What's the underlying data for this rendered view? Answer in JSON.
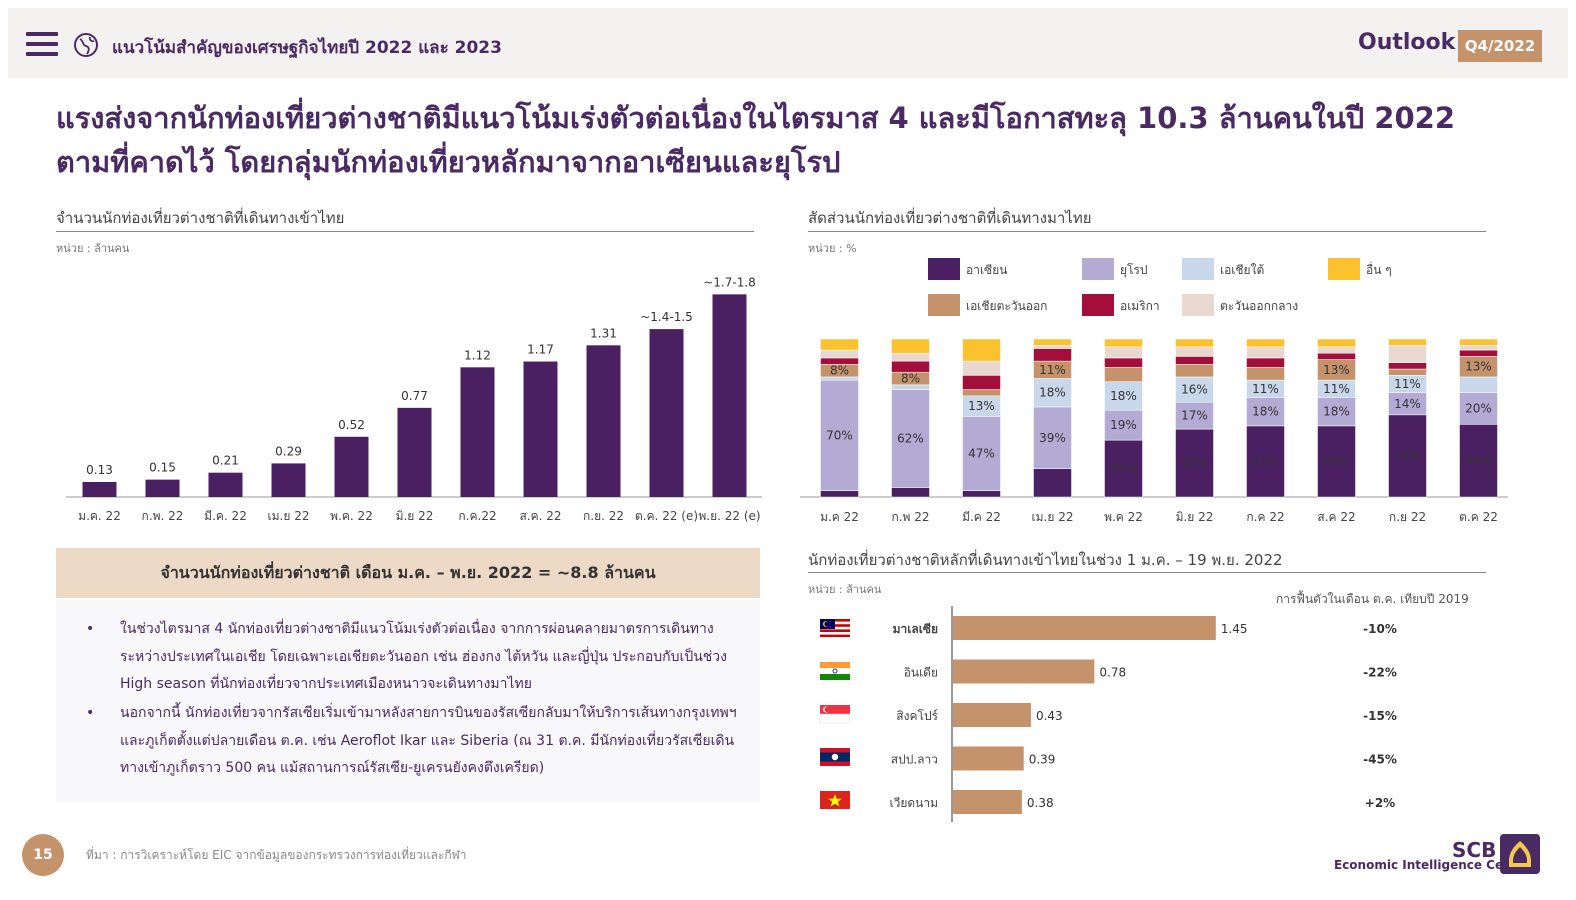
{
  "header": {
    "title": "แนวโน้มสำคัญของเศรษฐกิจไทยปี 2022 และ 2023",
    "outlook": "Outlook",
    "quarter": "Q4/2022"
  },
  "main_title": "แรงส่งจากนักท่องเที่ยวต่างชาติมีแนวโน้มเร่งตัวต่อเนื่องในไตรมาส 4 และมีโอกาสทะลุ 10.3 ล้านคนในปี 2022 ตามที่คาดไว้ โดยกลุ่มนักท่องเที่ยวหลักมาจากอาเซียนและยุโรป",
  "left_chart_section": {
    "title": "จำนวนนักท่องเที่ยวต่างชาติที่เดินทางเข้าไทย",
    "unit": "หน่วย : ล้านคน"
  },
  "right_chart_section": {
    "title": "สัดส่วนนักท่องเที่ยวต่างชาติที่เดินทางมาไทย",
    "unit": "หน่วย : %"
  },
  "bottom_chart_section": {
    "title": "นักท่องเที่ยวต่างชาติหลักที่เดินทางเข้าไทยในช่วง 1 ม.ค. – 19 พ.ย. 2022",
    "unit": "หน่วย : ล้านคน",
    "recovery_header": "การฟื้นตัวในเดือน ต.ค. เทียบปี 2019"
  },
  "summary": "จำนวนนักท่องเที่ยวต่างชาติ เดือน ม.ค. – พ.ย. 2022   = ~8.8 ล้านคน",
  "bullets": [
    "ในช่วงไตรมาส 4 นักท่องเที่ยวต่างชาติมีแนวโน้มเร่งตัวต่อเนื่อง จากการผ่อนคลายมาตรการเดินทางระหว่างประเทศในเอเชีย โดยเฉพาะเอเชียตะวันออก เช่น ฮ่องกง ไต้หวัน และญี่ปุ่น ประกอบกับเป็นช่วง High season ที่นักท่องเที่ยวจากประเทศเมืองหนาวจะเดินทางมาไทย",
    "นอกจากนี้ นักท่องเที่ยวจากรัสเซียเริ่มเข้ามาหลังสายการบินของรัสเซียกลับมาให้บริการเส้นทางกรุงเทพฯ และภูเก็ตตั้งแต่ปลายเดือน ต.ค. เช่น Aeroflot Ikar และ Siberia (ณ 31 ต.ค. มีนักท่องเที่ยวรัสเซียเดินทางเข้าภูเก็ตราว 500 คน แม้สถานการณ์รัสเซีย-ยูเครนยังคงตึงเครียด)"
  ],
  "footer": {
    "page": "15",
    "source": "ที่มา : การวิเคราะห์โดย EIC จากข้อมูลของกระทรวงการท่องเที่ยวและกีฬา",
    "logo": "SCB",
    "logo_sub": "Economic Intelligence Center"
  },
  "colors": {
    "accent": "#4a2a63",
    "tan": "#c4926b",
    "asean": "#4b2063",
    "europe": "#b3abd3",
    "south_asia": "#c9d7ea",
    "other": "#fcc22e",
    "east_asia": "#c4926b",
    "america": "#a30f3a",
    "middle_east": "#e8d8cf"
  },
  "chart_data": [
    {
      "type": "bar",
      "categories": [
        "ม.ค. 22",
        "ก.พ. 22",
        "มี.ค. 22",
        "เม.ย 22",
        "พ.ค. 22",
        "มิ.ย 22",
        "ก.ค.22",
        "ส.ค. 22",
        "ก.ย. 22",
        "ต.ค. 22 (e)",
        "พ.ย. 22 (e)"
      ],
      "values": [
        0.13,
        0.15,
        0.21,
        0.29,
        0.52,
        0.77,
        1.12,
        1.17,
        1.31,
        1.45,
        1.75
      ],
      "labels": [
        "0.13",
        "0.15",
        "0.21",
        "0.29",
        "0.52",
        "0.77",
        "1.12",
        "1.17",
        "1.31",
        "~1.4-1.5",
        "~1.7-1.8"
      ],
      "ylim": [
        0,
        1.9
      ],
      "color": "#4b2063"
    },
    {
      "type": "bar",
      "stacked": true,
      "categories": [
        "ม.ค 22",
        "ก.พ 22",
        "มี.ค 22",
        "เม.ย 22",
        "พ.ค 22",
        "มิ.ย 22",
        "ก.ค 22",
        "ส.ค 22",
        "ก.ย 22",
        "ต.ค 22"
      ],
      "ylim": [
        0,
        100
      ],
      "legend": [
        "อาเซียน",
        "ยุโรป",
        "เอเชียใต้",
        "อื่น ๆ",
        "เอเชียตะวันออก",
        "อเมริกา",
        "ตะวันออกกลาง"
      ],
      "series": [
        {
          "name": "อาเซียน",
          "color": "#4b2063",
          "values": [
            4,
            6,
            4,
            18,
            36,
            43,
            45,
            45,
            52,
            46
          ]
        },
        {
          "name": "ยุโรป",
          "color": "#b3abd3",
          "values": [
            70,
            62,
            47,
            39,
            19,
            17,
            18,
            18,
            14,
            20
          ]
        },
        {
          "name": "เอเชียใต้",
          "color": "#c9d7ea",
          "values": [
            2,
            3,
            13,
            18,
            18,
            16,
            11,
            11,
            11,
            10
          ]
        },
        {
          "name": "เอเชียตะวันออก",
          "color": "#c4926b",
          "values": [
            8,
            8,
            4,
            11,
            9,
            8,
            8,
            13,
            4,
            13
          ]
        },
        {
          "name": "อเมริกา",
          "color": "#a30f3a",
          "values": [
            4,
            7,
            9,
            8,
            6,
            5,
            6,
            4,
            4,
            4
          ]
        },
        {
          "name": "ตะวันออกกลาง",
          "color": "#e8d8cf",
          "values": [
            5,
            5,
            9,
            2,
            7,
            6,
            7,
            4,
            11,
            3
          ]
        },
        {
          "name": "อื่น ๆ",
          "color": "#fcc22e",
          "values": [
            7,
            9,
            14,
            4,
            5,
            5,
            5,
            5,
            4,
            4
          ]
        }
      ]
    },
    {
      "type": "bar",
      "orientation": "horizontal",
      "categories": [
        "มาเลเซีย",
        "อินเดีย",
        "สิงคโปร์",
        "สปป.ลาว",
        "เวียดนาม"
      ],
      "values": [
        1.45,
        0.78,
        0.43,
        0.39,
        0.38
      ],
      "recovery": [
        "-10%",
        "-22%",
        "-15%",
        "-45%",
        "+2%"
      ],
      "xlim": [
        0,
        1.6
      ],
      "color": "#c4926b"
    }
  ]
}
